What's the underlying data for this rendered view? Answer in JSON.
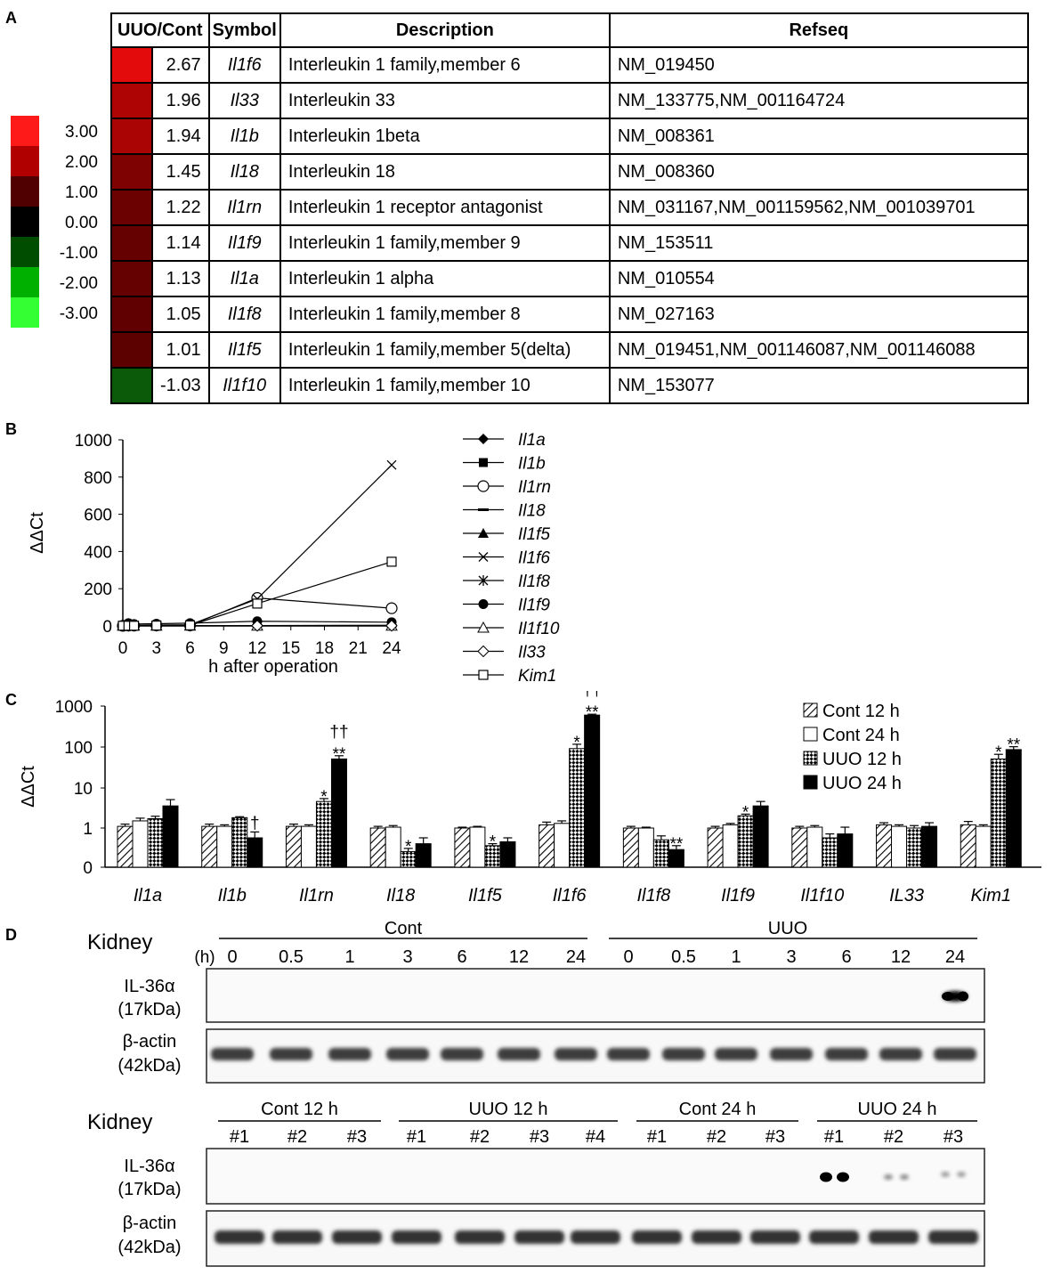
{
  "panels": {
    "a": "A",
    "b": "B",
    "c": "C",
    "d": "D"
  },
  "scale": {
    "colors": [
      "#ff1a1a",
      "#b00000",
      "#500000",
      "#000000",
      "#004d00",
      "#00b000",
      "#33ff33"
    ],
    "labels": [
      "3.00",
      "2.00",
      "1.00",
      "0.00",
      "-1.00",
      "-2.00",
      "-3.00"
    ]
  },
  "table": {
    "headers": [
      "UUO/Cont",
      "Symbol",
      "Description",
      "Refseq"
    ],
    "rows": [
      {
        "value": "2.67",
        "color": "#e30b0b",
        "symbol": "Il1f6",
        "description": "Interleukin 1 family,member 6",
        "refseq": "NM_019450"
      },
      {
        "value": "1.96",
        "color": "#ae0404",
        "symbol": "Il33",
        "description": "Interleukin 33",
        "refseq": "NM_133775,NM_001164724"
      },
      {
        "value": "1.94",
        "color": "#aa0404",
        "symbol": "Il1b",
        "description": "Interleukin 1beta",
        "refseq": "NM_008361"
      },
      {
        "value": "1.45",
        "color": "#7e0202",
        "symbol": "Il18",
        "description": "Interleukin 18",
        "refseq": "NM_008360"
      },
      {
        "value": "1.22",
        "color": "#6c0101",
        "symbol": "Il1rn",
        "description": "Interleukin 1 receptor antagonist",
        "refseq": "NM_031167,NM_001159562,NM_001039701"
      },
      {
        "value": "1.14",
        "color": "#660101",
        "symbol": "Il1f9",
        "description": "Interleukin 1 family,member 9",
        "refseq": "NM_153511"
      },
      {
        "value": "1.13",
        "color": "#650101",
        "symbol": "Il1a",
        "description": "Interleukin 1 alpha",
        "refseq": "NM_010554"
      },
      {
        "value": "1.05",
        "color": "#600000",
        "symbol": "Il1f8",
        "description": "Interleukin 1 family,member 8",
        "refseq": "NM_027163"
      },
      {
        "value": "1.01",
        "color": "#5c0000",
        "symbol": "Il1f5",
        "description": "Interleukin 1 family,member 5(delta)",
        "refseq": "NM_019451,NM_001146087,NM_001146088"
      },
      {
        "value": "-1.03",
        "color": "#0a5a0a",
        "symbol": "Il1f10",
        "description": "Interleukin 1 family,member 10",
        "refseq": "NM_153077"
      }
    ]
  },
  "chart_data": [
    {
      "type": "line",
      "panel": "B",
      "xlabel": "h after operation",
      "ylabel": "ΔΔCt",
      "ylim": [
        0,
        1000
      ],
      "yticks": [
        "0",
        "200",
        "400",
        "600",
        "800",
        "1000"
      ],
      "xticks": [
        "0",
        "3",
        "6",
        "9",
        "12",
        "15",
        "18",
        "21",
        "24"
      ],
      "x": [
        0,
        0.5,
        1,
        3,
        6,
        12,
        24
      ],
      "series": [
        {
          "name": "Il1a",
          "marker": "diamond-filled",
          "values": [
            1,
            1,
            1,
            1,
            1,
            2,
            4
          ]
        },
        {
          "name": "Il1b",
          "marker": "square-filled",
          "values": [
            1,
            1,
            1,
            1,
            1,
            2,
            1
          ]
        },
        {
          "name": "Il1rn",
          "marker": "circle-open",
          "values": [
            1,
            2,
            2,
            3,
            3,
            150,
            95
          ]
        },
        {
          "name": "Il18",
          "marker": "dash",
          "values": [
            1,
            1,
            1,
            1,
            1,
            1,
            1
          ]
        },
        {
          "name": "Il1f5",
          "marker": "triangle-filled",
          "values": [
            1,
            1,
            1,
            1,
            1,
            1,
            1
          ]
        },
        {
          "name": "Il1f6",
          "marker": "x",
          "values": [
            1,
            2,
            3,
            5,
            6,
            145,
            865
          ]
        },
        {
          "name": "Il1f8",
          "marker": "star",
          "values": [
            1,
            1,
            1,
            1,
            1,
            1,
            1
          ]
        },
        {
          "name": "Il1f9",
          "marker": "circle-filled",
          "values": [
            1,
            15,
            10,
            12,
            15,
            25,
            20
          ]
        },
        {
          "name": "Il1f10",
          "marker": "triangle-open",
          "values": [
            1,
            1,
            1,
            1,
            1,
            1,
            1
          ]
        },
        {
          "name": "Il33",
          "marker": "diamond-open",
          "values": [
            1,
            1,
            1,
            1,
            1,
            1,
            1
          ]
        },
        {
          "name": "Kim1",
          "marker": "square-open",
          "values": [
            1,
            1,
            1,
            2,
            3,
            120,
            345
          ]
        }
      ]
    },
    {
      "type": "bar",
      "panel": "C",
      "yscale": "log",
      "ylabel": "ΔΔCt",
      "ylim": [
        0,
        1000
      ],
      "yticks": [
        "0",
        "1",
        "10",
        "100",
        "1000"
      ],
      "categories": [
        "Il1a",
        "Il1b",
        "Il1rn",
        "Il18",
        "Il1f5",
        "Il1f6",
        "Il1f8",
        "Il1f9",
        "Il1f10",
        "IL33",
        "Kim1"
      ],
      "series": [
        {
          "name": "Cont 12 h",
          "pattern": "hatch",
          "values": [
            1.1,
            1.1,
            1.1,
            1.0,
            1.0,
            1.2,
            1.0,
            1.0,
            1.0,
            1.2,
            1.2
          ],
          "errors": [
            0.15,
            0.15,
            0.15,
            0.1,
            0.05,
            0.2,
            0.1,
            0.1,
            0.1,
            0.15,
            0.25
          ]
        },
        {
          "name": "Cont 24 h",
          "pattern": "white",
          "values": [
            1.5,
            1.1,
            1.1,
            1.05,
            1.05,
            1.3,
            1.0,
            1.2,
            1.05,
            1.1,
            1.1
          ],
          "errors": [
            0.25,
            0.1,
            0.1,
            0.1,
            0.05,
            0.2,
            0.05,
            0.1,
            0.1,
            0.1,
            0.1
          ]
        },
        {
          "name": "UUO 12 h",
          "pattern": "checker",
          "values": [
            1.7,
            1.8,
            4.5,
            0.4,
            0.55,
            90,
            0.7,
            2.0,
            0.75,
            1.0,
            50
          ],
          "errors": [
            0.25,
            0.1,
            0.8,
            0.08,
            0.05,
            25,
            0.1,
            0.2,
            0.1,
            0.15,
            15
          ]
        },
        {
          "name": "UUO 24 h",
          "pattern": "black",
          "values": [
            3.5,
            0.75,
            50,
            0.6,
            0.65,
            600,
            0.45,
            3.5,
            0.85,
            1.1,
            85
          ],
          "errors": [
            1.5,
            0.15,
            10,
            0.15,
            0.1,
            30,
            0.1,
            1.0,
            0.2,
            0.25,
            15
          ]
        }
      ],
      "annotations": [
        {
          "category": 2,
          "series": 2,
          "text": "*"
        },
        {
          "category": 2,
          "series": 3,
          "text": "**"
        },
        {
          "category": 2,
          "series": 3,
          "text": "††"
        },
        {
          "category": 1,
          "series": 3,
          "text": "†"
        },
        {
          "category": 3,
          "series": 2,
          "text": "*"
        },
        {
          "category": 4,
          "series": 2,
          "text": "*"
        },
        {
          "category": 5,
          "series": 2,
          "text": "*"
        },
        {
          "category": 5,
          "series": 3,
          "text": "**"
        },
        {
          "category": 5,
          "series": 3,
          "text": "††"
        },
        {
          "category": 6,
          "series": 3,
          "text": "**"
        },
        {
          "category": 7,
          "series": 2,
          "text": "*"
        },
        {
          "category": 10,
          "series": 2,
          "text": "*"
        },
        {
          "category": 10,
          "series": 3,
          "text": "**"
        }
      ]
    }
  ],
  "blots": {
    "top": {
      "title": "Kidney",
      "groups": [
        "Cont",
        "UUO"
      ],
      "h_label": "(h)",
      "cont_times": [
        "0",
        "0.5",
        "1",
        "3",
        "6",
        "12",
        "24"
      ],
      "uuo_times": [
        "0",
        "0.5",
        "1",
        "3",
        "6",
        "12",
        "24"
      ],
      "rows": [
        {
          "label1": "IL-36α",
          "label2": "(17kDa)"
        },
        {
          "label1": "β-actin",
          "label2": "(42kDa)"
        }
      ]
    },
    "bottom": {
      "title": "Kidney",
      "groups": [
        "Cont 12 h",
        "UUO 12 h",
        "Cont 24 h",
        "UUO 24 h"
      ],
      "lanes": [
        [
          "#1",
          "#2",
          "#3"
        ],
        [
          "#1",
          "#2",
          "#3",
          "#4"
        ],
        [
          "#1",
          "#2",
          "#3"
        ],
        [
          "#1",
          "#2",
          "#3"
        ]
      ],
      "rows": [
        {
          "label1": "IL-36α",
          "label2": "(17kDa)"
        },
        {
          "label1": "β-actin",
          "label2": "(42kDa)"
        }
      ]
    }
  }
}
